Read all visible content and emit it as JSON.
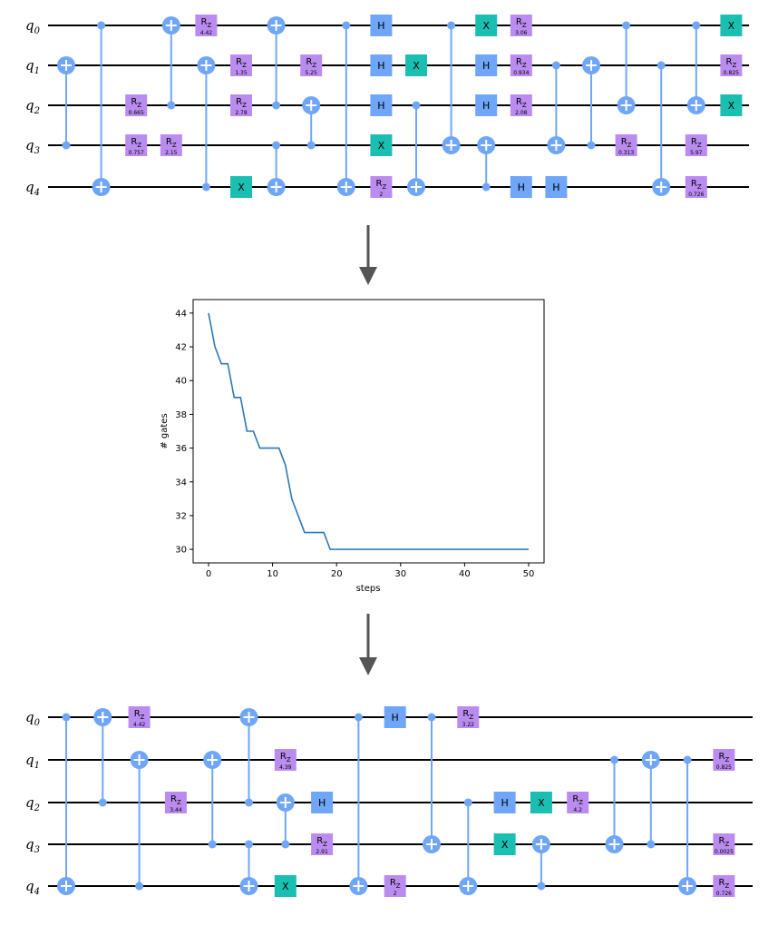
{
  "qubit_labels": [
    "q0",
    "q1",
    "q2",
    "q3",
    "q4"
  ],
  "circuit_before": {
    "gates": [
      {
        "type": "cx",
        "col": 0,
        "ctrl": 3,
        "tgt": 1
      },
      {
        "type": "cx",
        "col": 1,
        "ctrl": 0,
        "tgt": 4
      },
      {
        "type": "rz",
        "col": 2,
        "q": 2,
        "p": "0.665"
      },
      {
        "type": "rz",
        "col": 2,
        "q": 3,
        "p": "0.757"
      },
      {
        "type": "cx",
        "col": 3,
        "ctrl": 2,
        "tgt": 0
      },
      {
        "type": "rz",
        "col": 3,
        "q": 3,
        "p": "2.15"
      },
      {
        "type": "rz",
        "col": 4,
        "q": 0,
        "p": "4.42"
      },
      {
        "type": "cx",
        "col": 4,
        "ctrl": 4,
        "tgt": 1
      },
      {
        "type": "rz",
        "col": 5,
        "q": 1,
        "p": "1.35"
      },
      {
        "type": "rz",
        "col": 5,
        "q": 2,
        "p": "2.78"
      },
      {
        "type": "x",
        "col": 5,
        "q": 4
      },
      {
        "type": "cx",
        "col": 6,
        "ctrl": 2,
        "tgt": 0
      },
      {
        "type": "cx",
        "col": 6,
        "ctrl": 3,
        "tgt": 4
      },
      {
        "type": "rz",
        "col": 7,
        "q": 1,
        "p": "5.25"
      },
      {
        "type": "cx",
        "col": 7,
        "ctrl": 3,
        "tgt": 2
      },
      {
        "type": "cx",
        "col": 8,
        "ctrl": 0,
        "tgt": 4
      },
      {
        "type": "h",
        "col": 9,
        "q": 0
      },
      {
        "type": "h",
        "col": 9,
        "q": 1
      },
      {
        "type": "h",
        "col": 9,
        "q": 2
      },
      {
        "type": "x",
        "col": 9,
        "q": 3
      },
      {
        "type": "rz",
        "col": 9,
        "q": 4,
        "p": "2"
      },
      {
        "type": "x",
        "col": 10,
        "q": 1
      },
      {
        "type": "cx",
        "col": 10,
        "ctrl": 2,
        "tgt": 4
      },
      {
        "type": "cx",
        "col": 11,
        "ctrl": 0,
        "tgt": 3
      },
      {
        "type": "x",
        "col": 12,
        "q": 0
      },
      {
        "type": "h",
        "col": 12,
        "q": 1
      },
      {
        "type": "h",
        "col": 12,
        "q": 2
      },
      {
        "type": "cx",
        "col": 12,
        "ctrl": 4,
        "tgt": 3
      },
      {
        "type": "rz",
        "col": 13,
        "q": 0,
        "p": "3.06"
      },
      {
        "type": "rz",
        "col": 13,
        "q": 1,
        "p": "0.934"
      },
      {
        "type": "rz",
        "col": 13,
        "q": 2,
        "p": "2.08"
      },
      {
        "type": "h",
        "col": 13,
        "q": 4
      },
      {
        "type": "cx",
        "col": 14,
        "ctrl": 1,
        "tgt": 3
      },
      {
        "type": "h",
        "col": 14,
        "q": 4
      },
      {
        "type": "cx",
        "col": 15,
        "ctrl": 3,
        "tgt": 1
      },
      {
        "type": "rz",
        "col": 16,
        "q": 3,
        "p": "0.313"
      },
      {
        "type": "cx",
        "col": 16,
        "ctrl": 0,
        "tgt": 2
      },
      {
        "type": "cx",
        "col": 17,
        "ctrl": 1,
        "tgt": 4
      },
      {
        "type": "cx",
        "col": 18,
        "ctrl": 0,
        "tgt": 2
      },
      {
        "type": "rz",
        "col": 18,
        "q": 3,
        "p": "5.97"
      },
      {
        "type": "rz",
        "col": 18,
        "q": 4,
        "p": "0.726"
      },
      {
        "type": "x",
        "col": 19,
        "q": 0
      },
      {
        "type": "rz",
        "col": 19,
        "q": 1,
        "p": "0.825"
      },
      {
        "type": "x",
        "col": 19,
        "q": 2
      }
    ]
  },
  "circuit_after": {
    "gates": [
      {
        "type": "cx",
        "col": 0,
        "ctrl": 0,
        "tgt": 4
      },
      {
        "type": "cx",
        "col": 1,
        "ctrl": 2,
        "tgt": 0
      },
      {
        "type": "rz",
        "col": 2,
        "q": 0,
        "p": "4.42"
      },
      {
        "type": "cx",
        "col": 2,
        "ctrl": 4,
        "tgt": 1
      },
      {
        "type": "rz",
        "col": 3,
        "q": 2,
        "p": "3.44"
      },
      {
        "type": "cx",
        "col": 4,
        "ctrl": 3,
        "tgt": 1
      },
      {
        "type": "cx",
        "col": 5,
        "ctrl": 2,
        "tgt": 0
      },
      {
        "type": "cx",
        "col": 5,
        "ctrl": 3,
        "tgt": 4
      },
      {
        "type": "rz",
        "col": 6,
        "q": 1,
        "p": "4.39"
      },
      {
        "type": "cx",
        "col": 6,
        "ctrl": 3,
        "tgt": 2
      },
      {
        "type": "x",
        "col": 6,
        "q": 4
      },
      {
        "type": "h",
        "col": 7,
        "q": 2
      },
      {
        "type": "rz",
        "col": 7,
        "q": 3,
        "p": "2.91"
      },
      {
        "type": "cx",
        "col": 8,
        "ctrl": 0,
        "tgt": 4
      },
      {
        "type": "h",
        "col": 9,
        "q": 0
      },
      {
        "type": "rz",
        "col": 9,
        "q": 4,
        "p": "2"
      },
      {
        "type": "cx",
        "col": 10,
        "ctrl": 0,
        "tgt": 3
      },
      {
        "type": "rz",
        "col": 11,
        "q": 0,
        "p": "3.22"
      },
      {
        "type": "cx",
        "col": 11,
        "ctrl": 2,
        "tgt": 4
      },
      {
        "type": "h",
        "col": 12,
        "q": 2
      },
      {
        "type": "x",
        "col": 12,
        "q": 3
      },
      {
        "type": "x",
        "col": 13,
        "q": 2
      },
      {
        "type": "cx",
        "col": 13,
        "ctrl": 4,
        "tgt": 3
      },
      {
        "type": "rz",
        "col": 14,
        "q": 2,
        "p": "4.2"
      },
      {
        "type": "cx",
        "col": 15,
        "ctrl": 1,
        "tgt": 3
      },
      {
        "type": "cx",
        "col": 16,
        "ctrl": 3,
        "tgt": 1
      },
      {
        "type": "cx",
        "col": 17,
        "ctrl": 1,
        "tgt": 4
      },
      {
        "type": "rz",
        "col": 18,
        "q": 1,
        "p": "0.825"
      },
      {
        "type": "rz",
        "col": 18,
        "q": 3,
        "p": "0.0025"
      },
      {
        "type": "rz",
        "col": 18,
        "q": 4,
        "p": "0.726"
      }
    ]
  },
  "chart_data": {
    "type": "line",
    "xlabel": "steps",
    "ylabel": "# gates",
    "xlim": [
      0,
      50
    ],
    "ylim": [
      29.2,
      44.8
    ],
    "xticks": [
      0,
      10,
      20,
      30,
      40,
      50
    ],
    "yticks": [
      30,
      32,
      34,
      36,
      38,
      40,
      42,
      44
    ],
    "grid": false,
    "x": [
      0,
      1,
      2,
      3,
      4,
      5,
      6,
      7,
      8,
      9,
      10,
      11,
      12,
      13,
      14,
      15,
      16,
      17,
      18,
      19,
      20,
      21,
      22,
      23,
      24,
      25,
      26,
      27,
      28,
      29,
      30,
      31,
      32,
      33,
      34,
      35,
      36,
      37,
      38,
      39,
      40,
      41,
      42,
      43,
      44,
      45,
      46,
      47,
      48,
      49,
      50
    ],
    "values": [
      44,
      42,
      41,
      41,
      39,
      39,
      37,
      37,
      36,
      36,
      36,
      36,
      35,
      33,
      32,
      31,
      31,
      31,
      31,
      30,
      30,
      30,
      30,
      30,
      30,
      30,
      30,
      30,
      30,
      30,
      30,
      30,
      30,
      30,
      30,
      30,
      30,
      30,
      30,
      30,
      30,
      30,
      30,
      30,
      30,
      30,
      30,
      30,
      30,
      30,
      30
    ]
  }
}
